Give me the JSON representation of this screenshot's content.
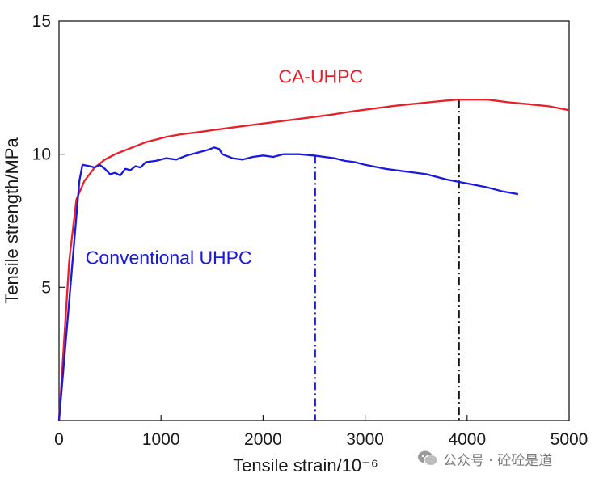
{
  "chart_data": {
    "type": "line",
    "xlabel": "Tensile strain/10⁻⁶",
    "ylabel": "Tensile strength/MPa",
    "xlim": [
      0,
      5000
    ],
    "ylim": [
      0,
      15
    ],
    "x_ticks": [
      0,
      1000,
      2000,
      3000,
      4000,
      5000
    ],
    "y_ticks": [
      5,
      10,
      15
    ],
    "x_tick_labels": [
      "0",
      "1000",
      "2000",
      "3000",
      "4000",
      "5000"
    ],
    "y_tick_labels": [
      "5",
      "10",
      "15"
    ],
    "grid": false,
    "series": [
      {
        "name": "CA-UHPC",
        "color": "#e8202a",
        "points": [
          [
            0,
            0
          ],
          [
            100,
            6.0
          ],
          [
            170,
            8.3
          ],
          [
            250,
            9.0
          ],
          [
            350,
            9.5
          ],
          [
            450,
            9.8
          ],
          [
            550,
            10.0
          ],
          [
            650,
            10.15
          ],
          [
            750,
            10.3
          ],
          [
            850,
            10.45
          ],
          [
            950,
            10.55
          ],
          [
            1050,
            10.65
          ],
          [
            1200,
            10.75
          ],
          [
            1350,
            10.82
          ],
          [
            1500,
            10.9
          ],
          [
            1700,
            11.0
          ],
          [
            1900,
            11.1
          ],
          [
            2100,
            11.2
          ],
          [
            2300,
            11.3
          ],
          [
            2500,
            11.4
          ],
          [
            2700,
            11.5
          ],
          [
            2900,
            11.62
          ],
          [
            3100,
            11.72
          ],
          [
            3300,
            11.82
          ],
          [
            3500,
            11.9
          ],
          [
            3700,
            11.98
          ],
          [
            3900,
            12.05
          ],
          [
            4050,
            12.05
          ],
          [
            4200,
            12.05
          ],
          [
            4400,
            11.95
          ],
          [
            4600,
            11.88
          ],
          [
            4800,
            11.8
          ],
          [
            5000,
            11.65
          ]
        ],
        "end_marker_x": 3920
      },
      {
        "name": "Conventional UHPC",
        "color": "#1a1adf",
        "points": [
          [
            0,
            0
          ],
          [
            200,
            9.0
          ],
          [
            230,
            9.6
          ],
          [
            300,
            9.55
          ],
          [
            350,
            9.5
          ],
          [
            400,
            9.6
          ],
          [
            450,
            9.45
          ],
          [
            500,
            9.25
          ],
          [
            550,
            9.3
          ],
          [
            600,
            9.2
          ],
          [
            650,
            9.45
          ],
          [
            700,
            9.4
          ],
          [
            750,
            9.55
          ],
          [
            800,
            9.5
          ],
          [
            850,
            9.7
          ],
          [
            950,
            9.75
          ],
          [
            1050,
            9.85
          ],
          [
            1150,
            9.8
          ],
          [
            1250,
            9.95
          ],
          [
            1350,
            10.05
          ],
          [
            1450,
            10.15
          ],
          [
            1520,
            10.25
          ],
          [
            1570,
            10.2
          ],
          [
            1600,
            10.0
          ],
          [
            1700,
            9.85
          ],
          [
            1800,
            9.8
          ],
          [
            1900,
            9.9
          ],
          [
            2000,
            9.95
          ],
          [
            2100,
            9.9
          ],
          [
            2200,
            10.0
          ],
          [
            2350,
            10.0
          ],
          [
            2500,
            9.95
          ],
          [
            2600,
            9.9
          ],
          [
            2700,
            9.85
          ],
          [
            2800,
            9.75
          ],
          [
            2900,
            9.7
          ],
          [
            3000,
            9.6
          ],
          [
            3200,
            9.45
          ],
          [
            3400,
            9.35
          ],
          [
            3600,
            9.25
          ],
          [
            3800,
            9.05
          ],
          [
            4000,
            8.9
          ],
          [
            4200,
            8.75
          ],
          [
            4350,
            8.6
          ],
          [
            4500,
            8.5
          ]
        ],
        "end_marker_x": 2510
      }
    ],
    "annotations": [
      {
        "text": "CA-UHPC",
        "x": 2150,
        "y": 12.8,
        "color": "#e8202a"
      },
      {
        "text": "Conventional UHPC",
        "x": 260,
        "y": 6.0,
        "color": "#1a1adf"
      }
    ],
    "drop_line_color_ca": "#111111"
  },
  "watermark": {
    "text": "公众号 · 砼砼是道",
    "icon": "wechat-icon"
  }
}
